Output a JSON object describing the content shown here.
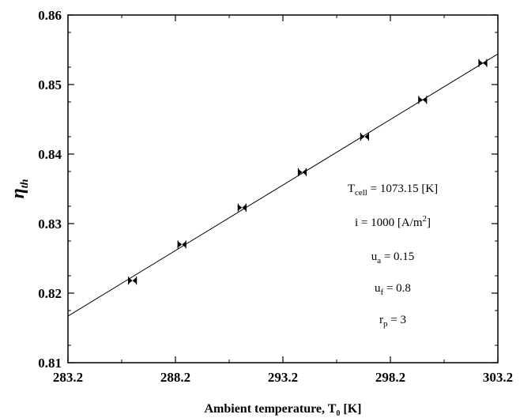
{
  "chart_data": {
    "type": "scatter",
    "title": "",
    "xlabel_main": "Ambient temperature, T",
    "xlabel_sub": "0",
    "xlabel_unit": " [K]",
    "ylabel_main": "η",
    "ylabel_sub": "th",
    "xlim": [
      283.2,
      303.2
    ],
    "ylim": [
      0.81,
      0.86
    ],
    "xticks": [
      283.2,
      288.2,
      293.2,
      298.2,
      303.2
    ],
    "xtick_labels": [
      "283.2",
      "288.2",
      "293.2",
      "298.2",
      "303.2"
    ],
    "yticks": [
      0.81,
      0.82,
      0.83,
      0.84,
      0.85,
      0.86
    ],
    "ytick_labels": [
      "0.81",
      "0.82",
      "0.83",
      "0.84",
      "0.85",
      "0.86"
    ],
    "grid": false,
    "series": [
      {
        "marker": "bowtie",
        "x": [
          286.2,
          288.5,
          291.3,
          294.1,
          297.0,
          299.7,
          302.5
        ],
        "y": [
          0.8218,
          0.827,
          0.8323,
          0.8374,
          0.8425,
          0.8478,
          0.8531
        ]
      }
    ],
    "fit_line": {
      "x": [
        283.2,
        303.2
      ],
      "y": [
        0.8167,
        0.8544
      ]
    },
    "annotations": [
      {
        "main": "T",
        "sub": "cell",
        "rest": " = 1073.15 [K]"
      },
      {
        "main": "i = 1000 [A/m",
        "sup": "2",
        "rest": "]"
      },
      {
        "main": "u",
        "sub": "a",
        "rest": " = 0.15"
      },
      {
        "main": "u",
        "sub": "f",
        "rest": " = 0.8"
      },
      {
        "main": "r",
        "sub": "p",
        "rest": " = 3"
      }
    ]
  }
}
